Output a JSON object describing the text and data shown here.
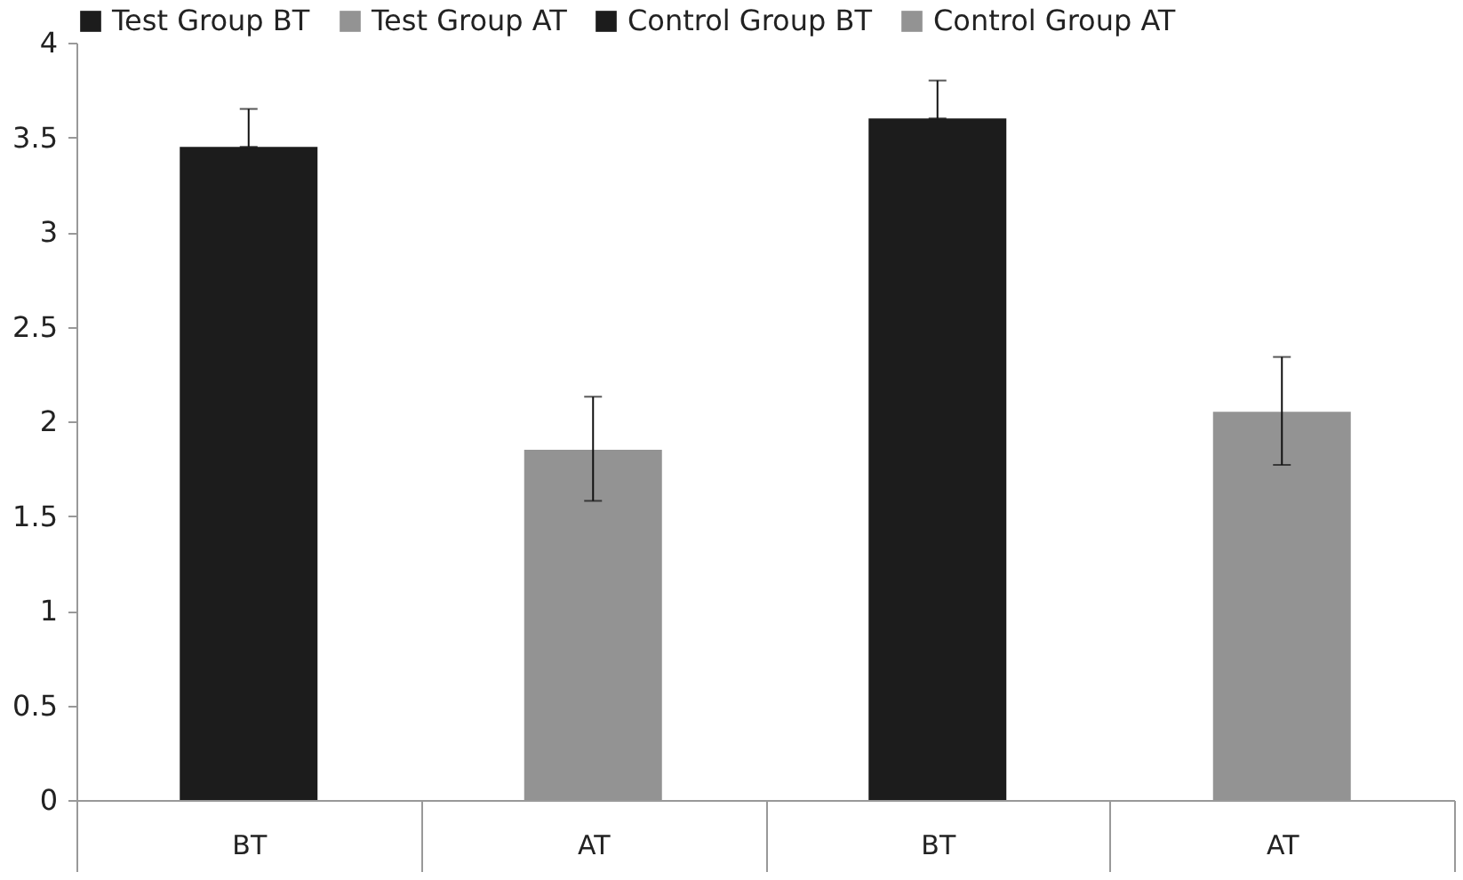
{
  "chart_data": {
    "type": "bar",
    "categories": [
      "BT",
      "AT",
      "BT",
      "AT"
    ],
    "series": [
      {
        "name": "Test Group BT",
        "color": "#1c1c1c",
        "values": [
          3.45,
          null,
          null,
          null
        ],
        "errors": [
          [
            3.45,
            3.65
          ],
          null,
          null,
          null
        ]
      },
      {
        "name": "Test Group AT",
        "color": "#939393",
        "values": [
          null,
          1.85,
          null,
          null
        ],
        "errors": [
          null,
          [
            1.58,
            2.13
          ],
          null,
          null
        ]
      },
      {
        "name": "Control Group BT",
        "color": "#1c1c1c",
        "values": [
          null,
          null,
          3.6,
          null
        ],
        "errors": [
          null,
          null,
          [
            3.6,
            3.8
          ],
          null
        ]
      },
      {
        "name": "Control Group AT",
        "color": "#939393",
        "values": [
          null,
          null,
          null,
          2.05
        ],
        "errors": [
          null,
          null,
          null,
          [
            1.77,
            2.34
          ]
        ]
      }
    ],
    "ylim": [
      0,
      4
    ],
    "yticks": [
      0,
      0.5,
      1,
      1.5,
      2,
      2.5,
      3,
      3.5,
      4
    ],
    "grid": false,
    "legend": "top"
  }
}
